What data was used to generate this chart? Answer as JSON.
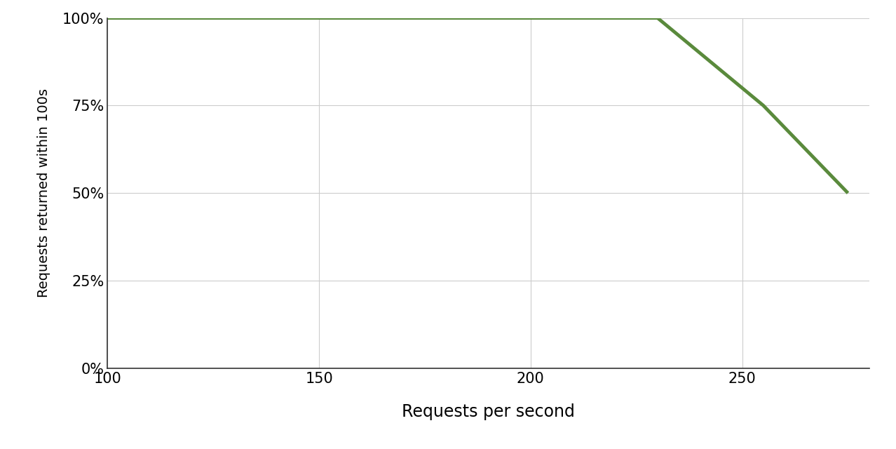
{
  "x": [
    100,
    230,
    255,
    275
  ],
  "y": [
    1.0,
    1.0,
    0.75,
    0.5
  ],
  "line_color": "#5a8a3c",
  "line_width": 3.5,
  "xlabel": "Requests per second",
  "ylabel": "Requests returned within 100s",
  "xlabel_fontsize": 17,
  "ylabel_fontsize": 14,
  "xlim": [
    100,
    280
  ],
  "ylim": [
    0,
    1.0
  ],
  "xticks": [
    100,
    150,
    200,
    250
  ],
  "yticks": [
    0,
    0.25,
    0.5,
    0.75,
    1.0
  ],
  "ytick_labels": [
    "0%",
    "25%",
    "50%",
    "75%",
    "100%"
  ],
  "grid_color": "#cccccc",
  "grid_linewidth": 0.8,
  "background_color": "#ffffff",
  "tick_fontsize": 15,
  "spine_color": "#333333"
}
